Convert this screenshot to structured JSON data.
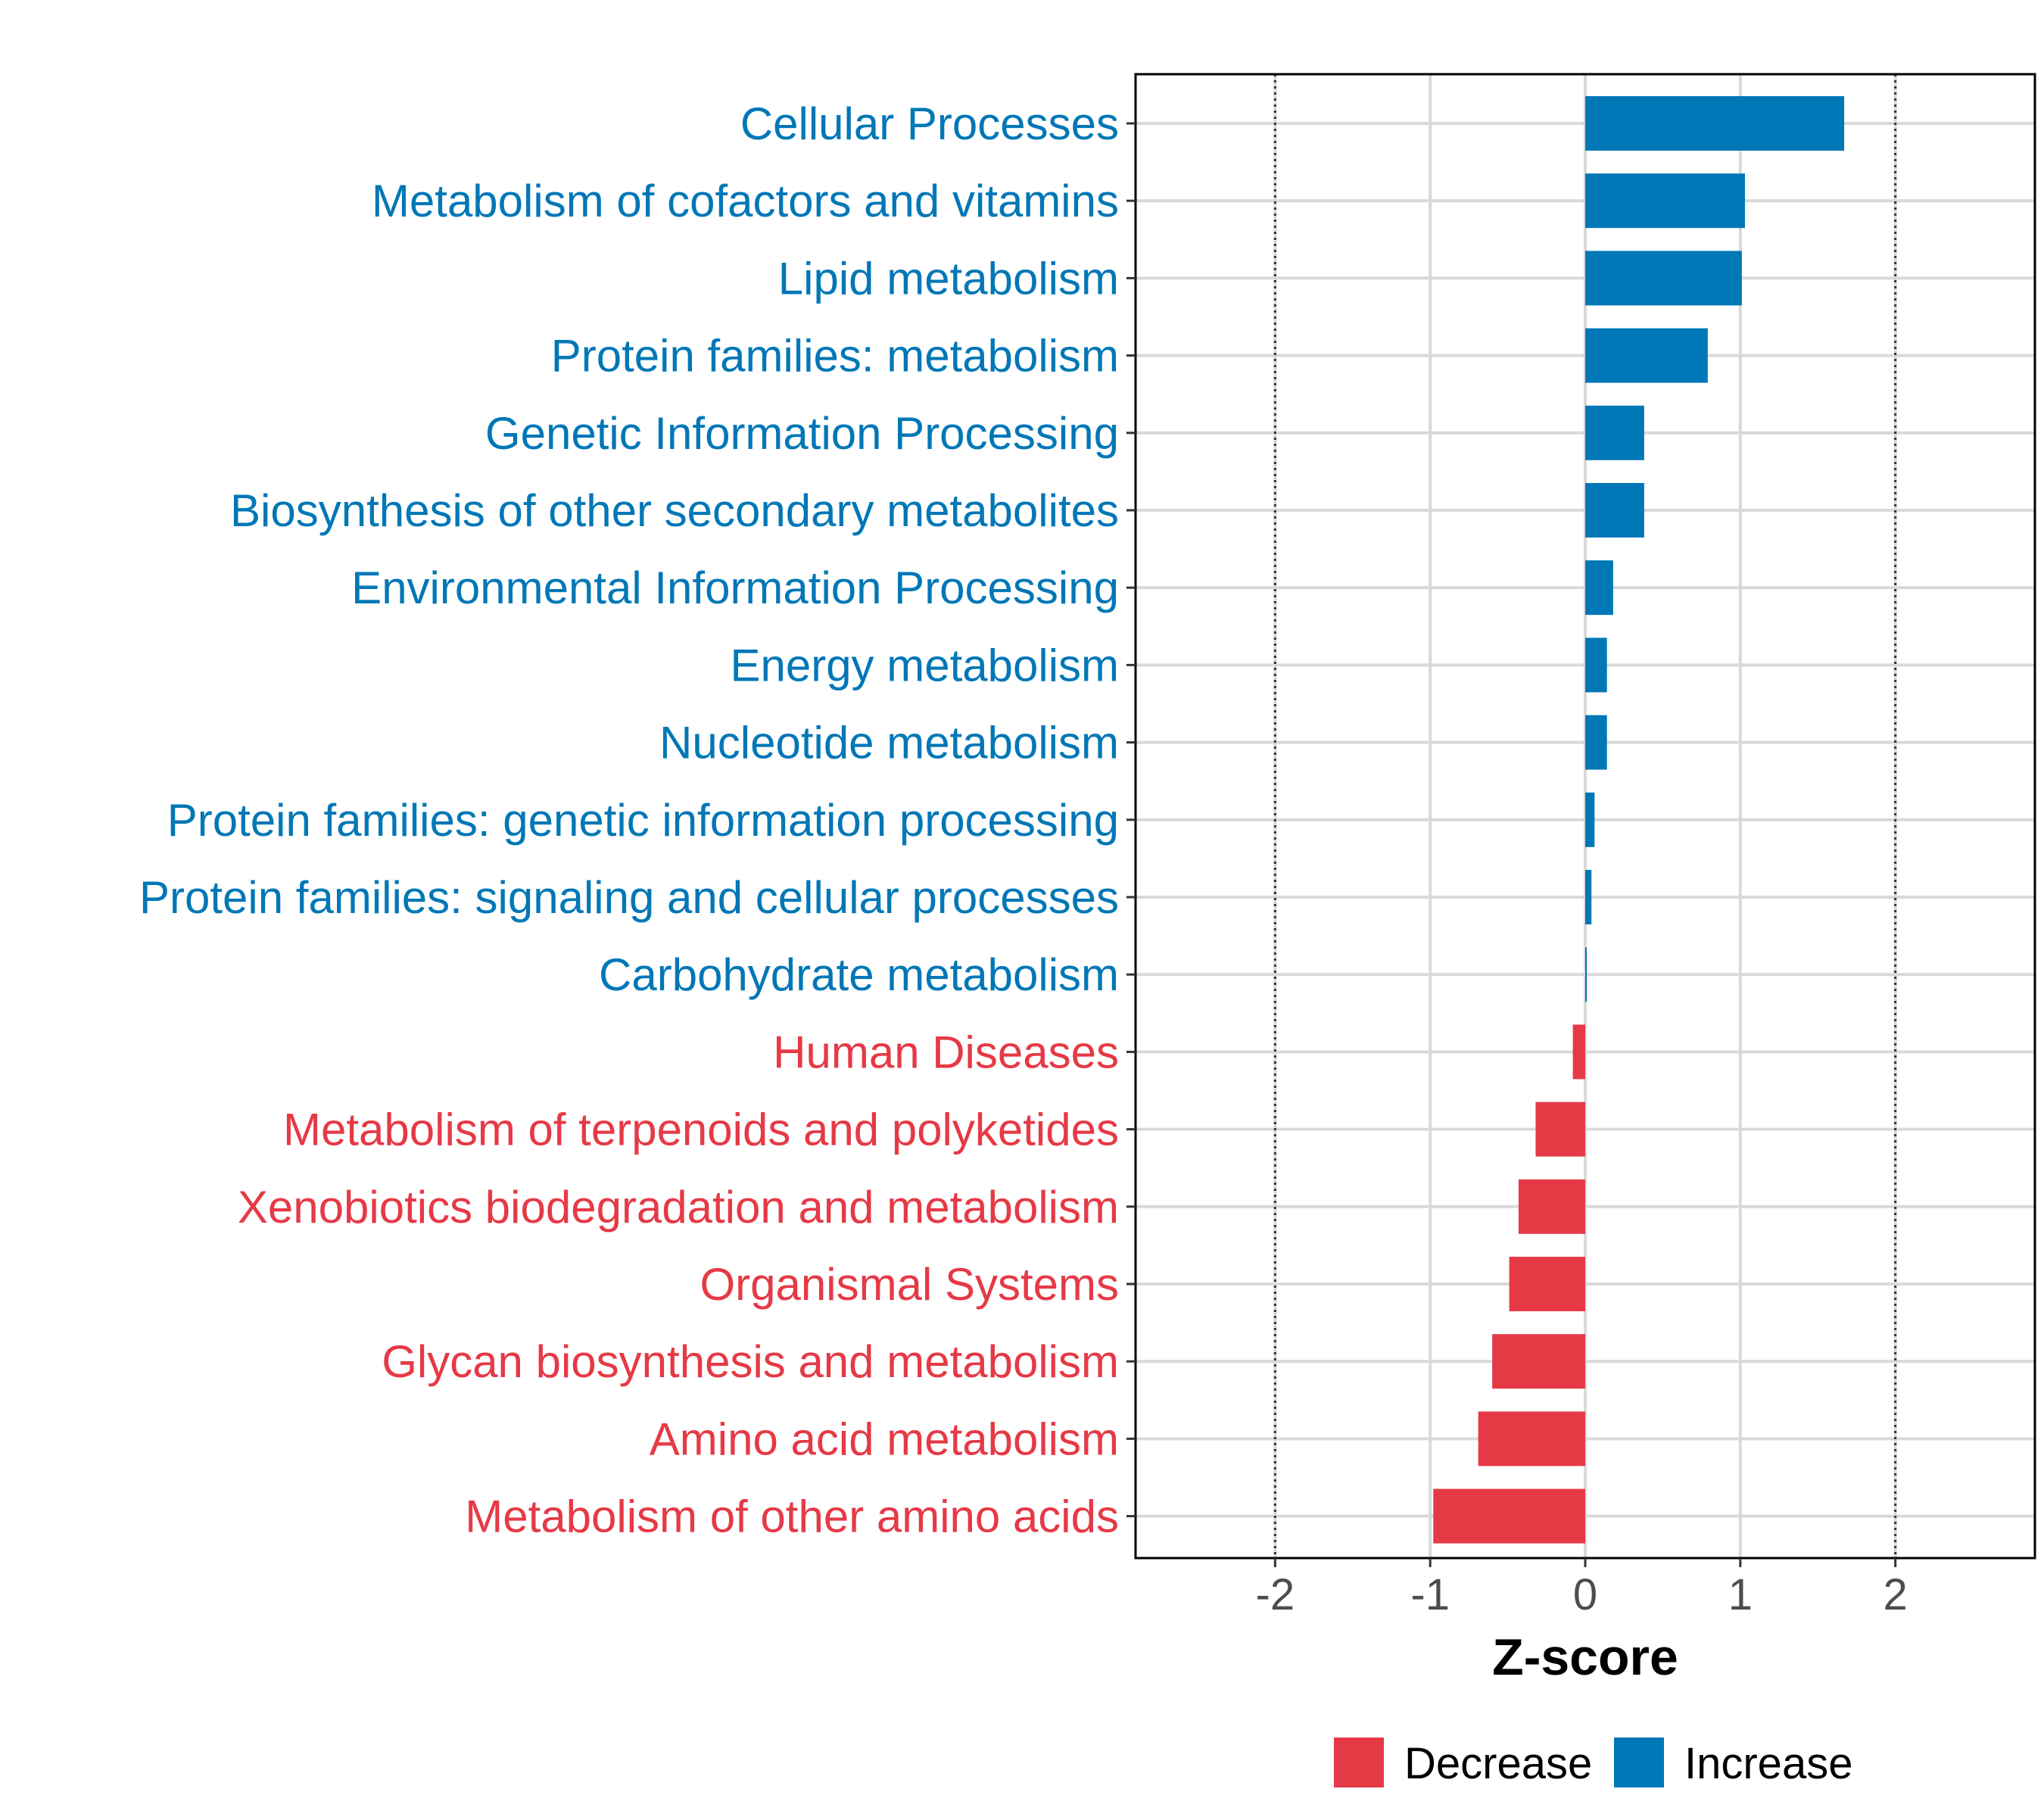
{
  "chart_data": {
    "type": "bar",
    "orientation": "horizontal",
    "xlabel": "Z-score",
    "ylabel": "",
    "xlim": [
      -2.9,
      2.9
    ],
    "x_ticks": [
      -2,
      -1,
      0,
      1,
      2
    ],
    "x_tick_labels": [
      "-2",
      "-1",
      "0",
      "1",
      "2"
    ],
    "reference_lines": [
      -2,
      2
    ],
    "grid": true,
    "legend_position": "bottom",
    "colors": {
      "Decrease": "#E63946",
      "Increase": "#0077B6"
    },
    "legend": [
      {
        "name": "Decrease",
        "color": "#E63946"
      },
      {
        "name": "Increase",
        "color": "#0077B6"
      }
    ],
    "categories": [
      "Cellular Processes",
      "Metabolism of cofactors and vitamins",
      "Lipid metabolism",
      "Protein families: metabolism",
      "Genetic Information Processing",
      "Biosynthesis of other secondary metabolites",
      "Environmental Information Processing",
      "Energy metabolism",
      "Nucleotide metabolism",
      "Protein families: genetic information processing",
      "Protein families: signaling and cellular processes",
      "Carbohydrate metabolism",
      "Human Diseases",
      "Metabolism of terpenoids and polyketides",
      "Xenobiotics biodegradation and metabolism",
      "Organismal Systems",
      "Glycan biosynthesis and metabolism",
      "Amino acid metabolism",
      "Metabolism of other amino acids"
    ],
    "values": [
      1.67,
      1.03,
      1.01,
      0.79,
      0.38,
      0.38,
      0.18,
      0.14,
      0.14,
      0.06,
      0.04,
      0.01,
      -0.08,
      -0.32,
      -0.43,
      -0.49,
      -0.6,
      -0.69,
      -0.98
    ],
    "groups": [
      "Increase",
      "Increase",
      "Increase",
      "Increase",
      "Increase",
      "Increase",
      "Increase",
      "Increase",
      "Increase",
      "Increase",
      "Increase",
      "Increase",
      "Decrease",
      "Decrease",
      "Decrease",
      "Decrease",
      "Decrease",
      "Decrease",
      "Decrease"
    ]
  }
}
